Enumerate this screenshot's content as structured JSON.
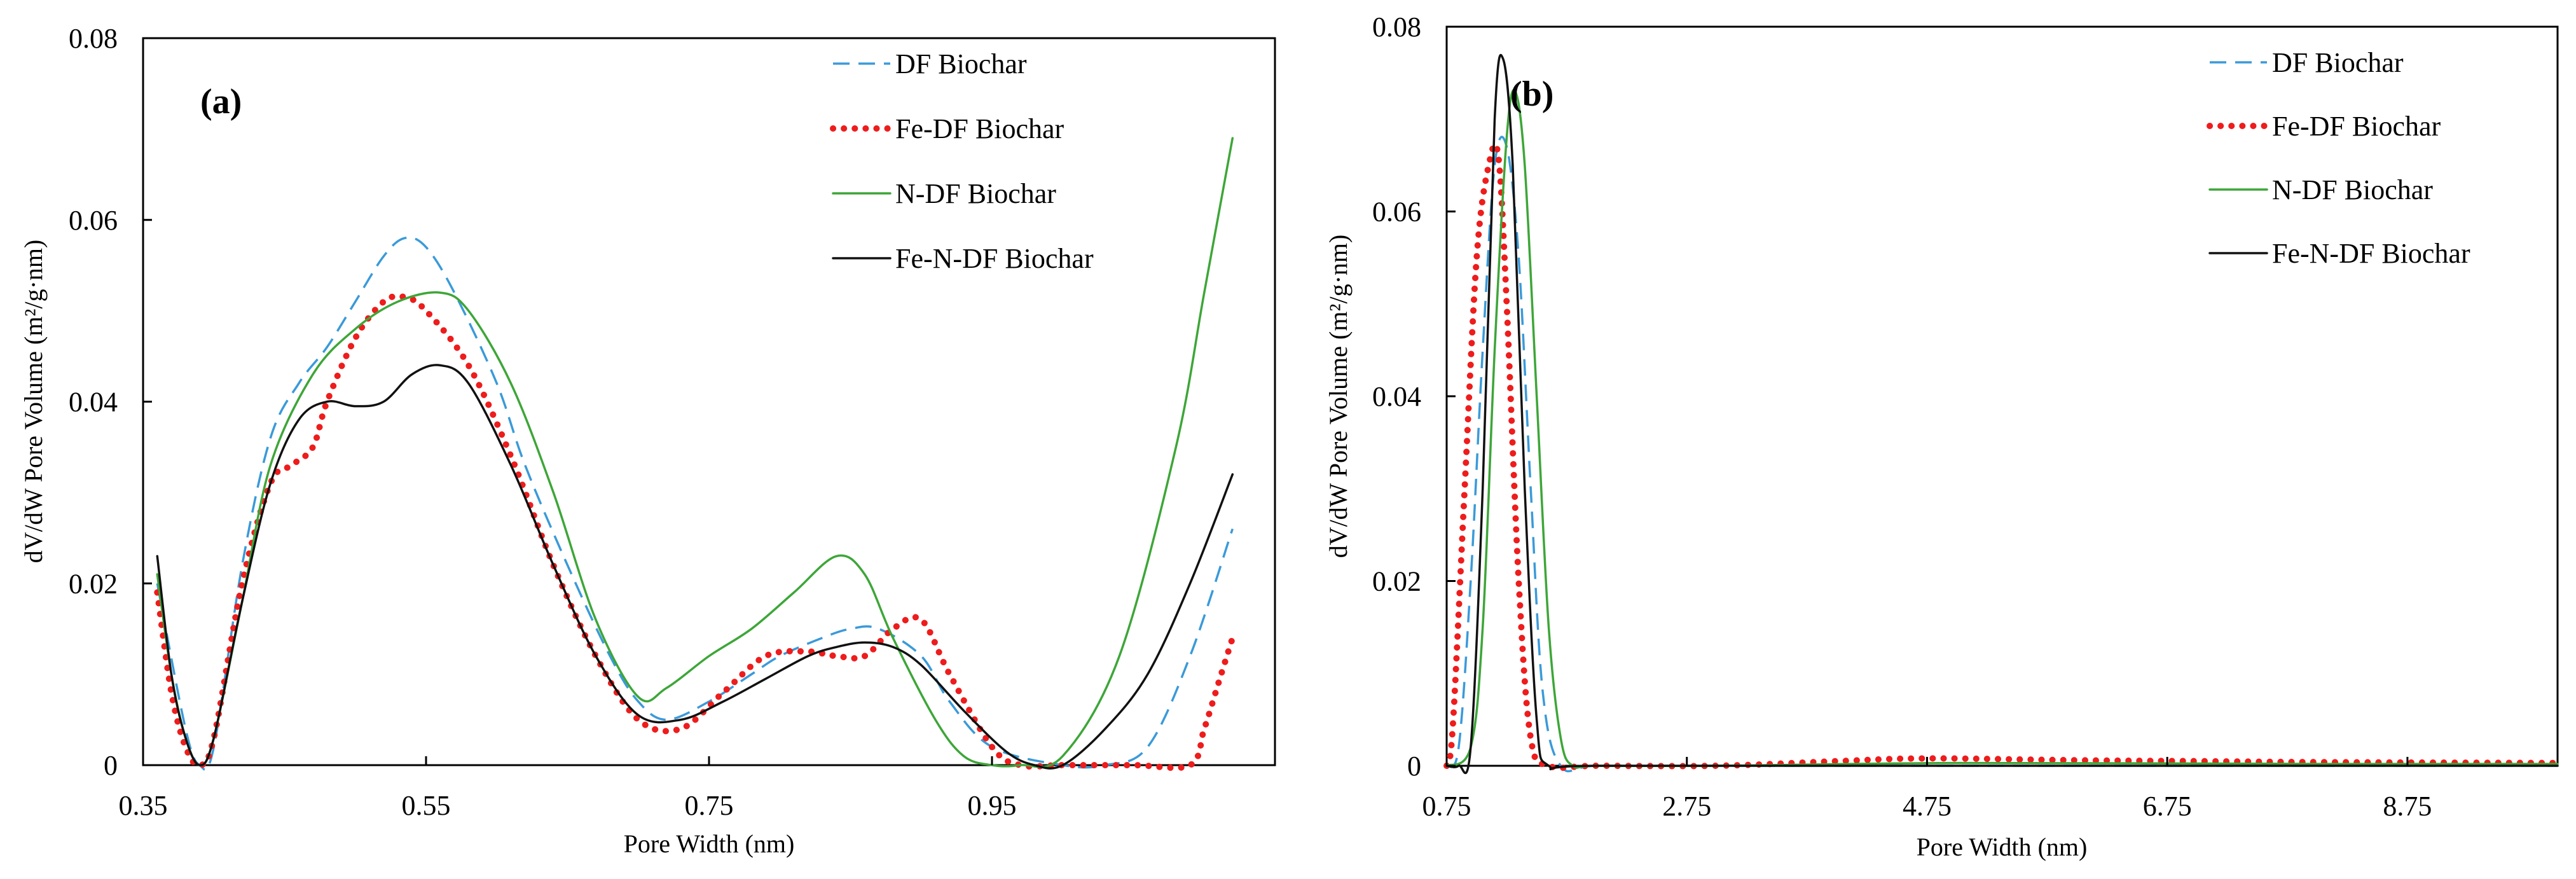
{
  "chart_data": [
    {
      "type": "line",
      "panel_label": "(a)",
      "xlabel": "Pore Width (nm)",
      "ylabel": "dV/dW Pore Volume (m²/g·nm)",
      "xlim": [
        0.35,
        1.15
      ],
      "ylim": [
        0,
        0.08
      ],
      "xticks": [
        "0.35",
        "0.55",
        "0.75",
        "0.95"
      ],
      "yticks": [
        "0",
        "0.02",
        "0.04",
        "0.06",
        "0.08"
      ],
      "xtick_values": [
        0.35,
        0.55,
        0.75,
        0.95
      ],
      "ytick_values": [
        0,
        0.02,
        0.04,
        0.06,
        0.08
      ],
      "grid": false,
      "legend": "top-right",
      "series": [
        {
          "name": "DF Biochar",
          "color": "#3a9ad9",
          "style": "dashed",
          "x": [
            0.36,
            0.38,
            0.39,
            0.4,
            0.42,
            0.44,
            0.46,
            0.48,
            0.5,
            0.52,
            0.535,
            0.55,
            0.57,
            0.6,
            0.62,
            0.65,
            0.68,
            0.7,
            0.72,
            0.75,
            0.78,
            0.8,
            0.83,
            0.85,
            0.87,
            0.9,
            0.92,
            0.95,
            1.0,
            1.03,
            1.06,
            1.09,
            1.12
          ],
          "y": [
            0.02,
            0.004,
            0.0,
            0.002,
            0.022,
            0.036,
            0.042,
            0.046,
            0.051,
            0.056,
            0.058,
            0.057,
            0.052,
            0.042,
            0.033,
            0.022,
            0.012,
            0.007,
            0.005,
            0.007,
            0.01,
            0.012,
            0.014,
            0.015,
            0.015,
            0.012,
            0.007,
            0.002,
            0.0,
            0.0,
            0.002,
            0.012,
            0.026
          ]
        },
        {
          "name": "Fe-DF Biochar",
          "color": "#ee1c1c",
          "style": "dotted",
          "x": [
            0.36,
            0.37,
            0.38,
            0.39,
            0.4,
            0.42,
            0.44,
            0.455,
            0.47,
            0.48,
            0.5,
            0.52,
            0.535,
            0.55,
            0.58,
            0.61,
            0.64,
            0.67,
            0.7,
            0.73,
            0.76,
            0.79,
            0.82,
            0.84,
            0.86,
            0.88,
            0.9,
            0.92,
            0.95,
            0.97,
            1.0,
            1.05,
            1.09,
            1.1,
            1.11,
            1.12
          ],
          "y": [
            0.019,
            0.008,
            0.002,
            0.0,
            0.003,
            0.02,
            0.031,
            0.033,
            0.035,
            0.04,
            0.047,
            0.051,
            0.0515,
            0.05,
            0.044,
            0.034,
            0.022,
            0.012,
            0.005,
            0.004,
            0.008,
            0.012,
            0.0125,
            0.012,
            0.012,
            0.015,
            0.016,
            0.01,
            0.002,
            0.0,
            0.0,
            0.0,
            0.0,
            0.004,
            0.009,
            0.014
          ]
        },
        {
          "name": "N-DF Biochar",
          "color": "#3da638",
          "style": "solid",
          "x": [
            0.36,
            0.37,
            0.38,
            0.39,
            0.4,
            0.42,
            0.44,
            0.47,
            0.5,
            0.53,
            0.56,
            0.58,
            0.61,
            0.64,
            0.67,
            0.7,
            0.72,
            0.75,
            0.78,
            0.81,
            0.84,
            0.86,
            0.88,
            0.91,
            0.93,
            0.95,
            0.97,
            1.0,
            1.04,
            1.08,
            1.1,
            1.12
          ],
          "y": [
            0.021,
            0.01,
            0.003,
            0.0,
            0.003,
            0.018,
            0.033,
            0.043,
            0.048,
            0.051,
            0.052,
            0.05,
            0.042,
            0.03,
            0.016,
            0.0075,
            0.0085,
            0.012,
            0.015,
            0.019,
            0.023,
            0.021,
            0.014,
            0.005,
            0.001,
            0.0,
            0.0,
            0.001,
            0.012,
            0.035,
            0.052,
            0.069
          ]
        },
        {
          "name": "Fe-N-DF Biochar",
          "color": "#111111",
          "style": "solid",
          "x": [
            0.36,
            0.37,
            0.38,
            0.39,
            0.4,
            0.42,
            0.44,
            0.46,
            0.48,
            0.5,
            0.52,
            0.54,
            0.56,
            0.58,
            0.61,
            0.64,
            0.67,
            0.7,
            0.73,
            0.76,
            0.79,
            0.82,
            0.84,
            0.86,
            0.88,
            0.9,
            0.93,
            0.96,
            0.98,
            1.0,
            1.03,
            1.06,
            1.09,
            1.12
          ],
          "y": [
            0.023,
            0.01,
            0.003,
            0.0,
            0.003,
            0.018,
            0.031,
            0.038,
            0.04,
            0.0395,
            0.04,
            0.043,
            0.044,
            0.042,
            0.033,
            0.022,
            0.012,
            0.0055,
            0.005,
            0.007,
            0.0095,
            0.012,
            0.013,
            0.0135,
            0.013,
            0.011,
            0.006,
            0.0015,
            0.0,
            0.0,
            0.004,
            0.01,
            0.02,
            0.032
          ]
        }
      ]
    },
    {
      "type": "line",
      "panel_label": "(b)",
      "xlabel": "Pore Width (nm)",
      "ylabel": "dV/dW Pore Volume (m²/g·nm)",
      "xlim": [
        0.75,
        10.0
      ],
      "ylim": [
        0,
        0.08
      ],
      "xticks": [
        "0.75",
        "2.75",
        "4.75",
        "6.75",
        "8.75"
      ],
      "yticks": [
        "0",
        "0.02",
        "0.04",
        "0.06",
        "0.08"
      ],
      "xtick_values": [
        0.75,
        2.75,
        4.75,
        6.75,
        8.75
      ],
      "ytick_values": [
        0,
        0.02,
        0.04,
        0.06,
        0.08
      ],
      "grid": false,
      "legend": "top-right",
      "series": [
        {
          "name": "DF Biochar",
          "color": "#3a9ad9",
          "style": "dashed",
          "x": [
            0.75,
            0.85,
            0.95,
            1.05,
            1.15,
            1.25,
            1.35,
            1.45,
            1.55,
            1.7,
            2.0,
            3.0,
            5.0,
            7.0,
            10.0
          ],
          "y": [
            0.0,
            0.002,
            0.02,
            0.045,
            0.065,
            0.067,
            0.055,
            0.03,
            0.008,
            0.0,
            0.0,
            0.0,
            0.0,
            0.0,
            0.0
          ]
        },
        {
          "name": "Fe-DF Biochar",
          "color": "#ee1c1c",
          "style": "dotted",
          "x": [
            0.75,
            0.8,
            0.9,
            1.0,
            1.1,
            1.18,
            1.25,
            1.35,
            1.45,
            1.6,
            2.0,
            3.0,
            4.0,
            4.75,
            6.0,
            7.0,
            8.0,
            10.0
          ],
          "y": [
            0.0,
            0.004,
            0.03,
            0.055,
            0.065,
            0.066,
            0.05,
            0.02,
            0.003,
            0.0,
            0.0,
            0.0,
            0.0005,
            0.0008,
            0.0006,
            0.0005,
            0.0004,
            0.0003
          ]
        },
        {
          "name": "N-DF Biochar",
          "color": "#3da638",
          "style": "solid",
          "x": [
            0.75,
            0.95,
            1.05,
            1.15,
            1.25,
            1.32,
            1.4,
            1.5,
            1.6,
            1.7,
            1.8,
            2.0,
            3.0,
            5.0,
            8.0,
            10.0
          ],
          "y": [
            0.0,
            0.002,
            0.015,
            0.045,
            0.068,
            0.073,
            0.065,
            0.04,
            0.015,
            0.003,
            0.0,
            0.0,
            0.0,
            0.0003,
            0.0002,
            0.0002
          ]
        },
        {
          "name": "Fe-N-DF Biochar",
          "color": "#111111",
          "style": "solid",
          "x": [
            0.75,
            0.85,
            0.95,
            1.05,
            1.15,
            1.22,
            1.3,
            1.4,
            1.5,
            1.6,
            2.0,
            5.0,
            10.0
          ],
          "y": [
            0.0,
            0.0,
            0.002,
            0.03,
            0.07,
            0.0765,
            0.065,
            0.03,
            0.005,
            0.0,
            0.0,
            0.0,
            0.0
          ]
        }
      ]
    }
  ]
}
